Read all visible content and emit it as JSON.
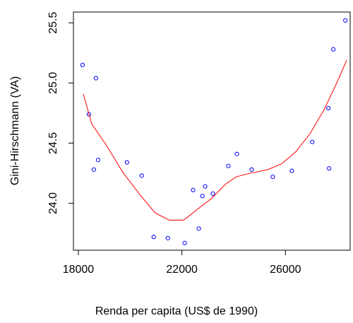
{
  "chart_data": {
    "type": "scatter",
    "x_label": "Renda per capita (US$ de 1990)",
    "y_label": "Gini-Hirschmann (VA)",
    "xlim": [
      17810,
      28500
    ],
    "ylim": [
      23.61,
      25.59
    ],
    "xticks": [
      18000,
      22000,
      26000
    ],
    "yticks": [
      {
        "value": 24,
        "label": "24.0"
      },
      24.5,
      {
        "value": 25,
        "label": "25.0"
      },
      25.5
    ],
    "series": [
      {
        "type": "scatter",
        "color": "#0000ff",
        "x": [
          18163,
          18408,
          18680,
          18599,
          18762,
          19878,
          20449,
          20912,
          21456,
          22109,
          22435,
          22653,
          22789,
          22898,
          23197,
          23796,
          24122,
          24694,
          25510,
          26245,
          27034,
          27660,
          27687,
          27850,
          28313
        ],
        "values": [
          25.15,
          24.74,
          25.04,
          24.28,
          24.36,
          24.34,
          24.23,
          23.72,
          23.71,
          23.67,
          24.11,
          23.79,
          24.06,
          24.14,
          24.08,
          24.31,
          24.41,
          24.28,
          24.22,
          24.27,
          24.51,
          24.79,
          24.29,
          25.28,
          25.52
        ]
      },
      {
        "type": "line",
        "color": "#ff0000",
        "x": [
          18190,
          18517,
          19061,
          19741,
          20422,
          20966,
          21510,
          22054,
          22190,
          22599,
          23143,
          23687,
          24095,
          24639,
          25320,
          25864,
          26408,
          26952,
          27497,
          27959,
          28367
        ],
        "values": [
          24.91,
          24.66,
          24.49,
          24.25,
          24.06,
          23.92,
          23.86,
          23.86,
          23.88,
          23.95,
          24.04,
          24.16,
          24.22,
          24.25,
          24.28,
          24.33,
          24.43,
          24.58,
          24.78,
          24.99,
          25.19
        ]
      }
    ]
  }
}
